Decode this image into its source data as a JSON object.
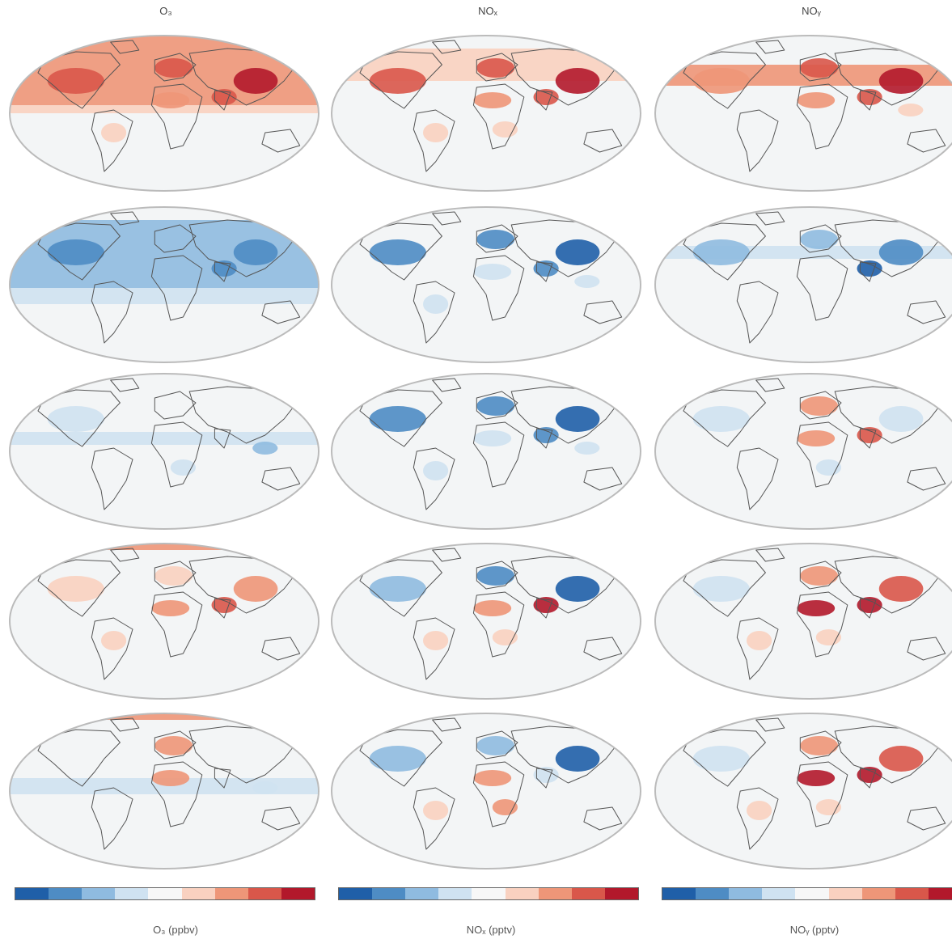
{
  "columns": [
    {
      "title": "O₃",
      "unit": "O₃ (ppbv)"
    },
    {
      "title": "NOₓ",
      "unit": "NOₓ (pptv)"
    },
    {
      "title": "NOᵧ",
      "unit": "NOᵧ (pptv)"
    }
  ],
  "colors": {
    "ocean": "#f3f5f6",
    "land": "#f7f7f7",
    "coast": "#555555",
    "frame": "#bbbbbb",
    "scale": [
      "#1f5fa8",
      "#4e8cc4",
      "#8fbbe0",
      "#cfe2f1",
      "#f7f7f7",
      "#f9d1c0",
      "#ee9678",
      "#d9574a",
      "#b2182b"
    ]
  },
  "chart_data": {
    "type": "map-grid",
    "panels": [
      {
        "row": 0,
        "col": 0,
        "pattern": "warm-strong-nh"
      },
      {
        "row": 0,
        "col": 1,
        "pattern": "warm-polluted"
      },
      {
        "row": 0,
        "col": 2,
        "pattern": "warm-polluted-band"
      },
      {
        "row": 1,
        "col": 0,
        "pattern": "cool-strong-nh"
      },
      {
        "row": 1,
        "col": 1,
        "pattern": "cool-polluted"
      },
      {
        "row": 1,
        "col": 2,
        "pattern": "cool-band"
      },
      {
        "row": 2,
        "col": 0,
        "pattern": "cool-weak-tropics"
      },
      {
        "row": 2,
        "col": 1,
        "pattern": "cool-polluted"
      },
      {
        "row": 2,
        "col": 2,
        "pattern": "mixed-asia-warm"
      },
      {
        "row": 3,
        "col": 0,
        "pattern": "warm-asia"
      },
      {
        "row": 3,
        "col": 1,
        "pattern": "mixed-cool-warm"
      },
      {
        "row": 3,
        "col": 2,
        "pattern": "warm-asia-africa"
      },
      {
        "row": 4,
        "col": 0,
        "pattern": "mixed-pacific-cool"
      },
      {
        "row": 4,
        "col": 1,
        "pattern": "cool-china-warm-africa"
      },
      {
        "row": 4,
        "col": 2,
        "pattern": "warm-asia-africa"
      }
    ]
  }
}
